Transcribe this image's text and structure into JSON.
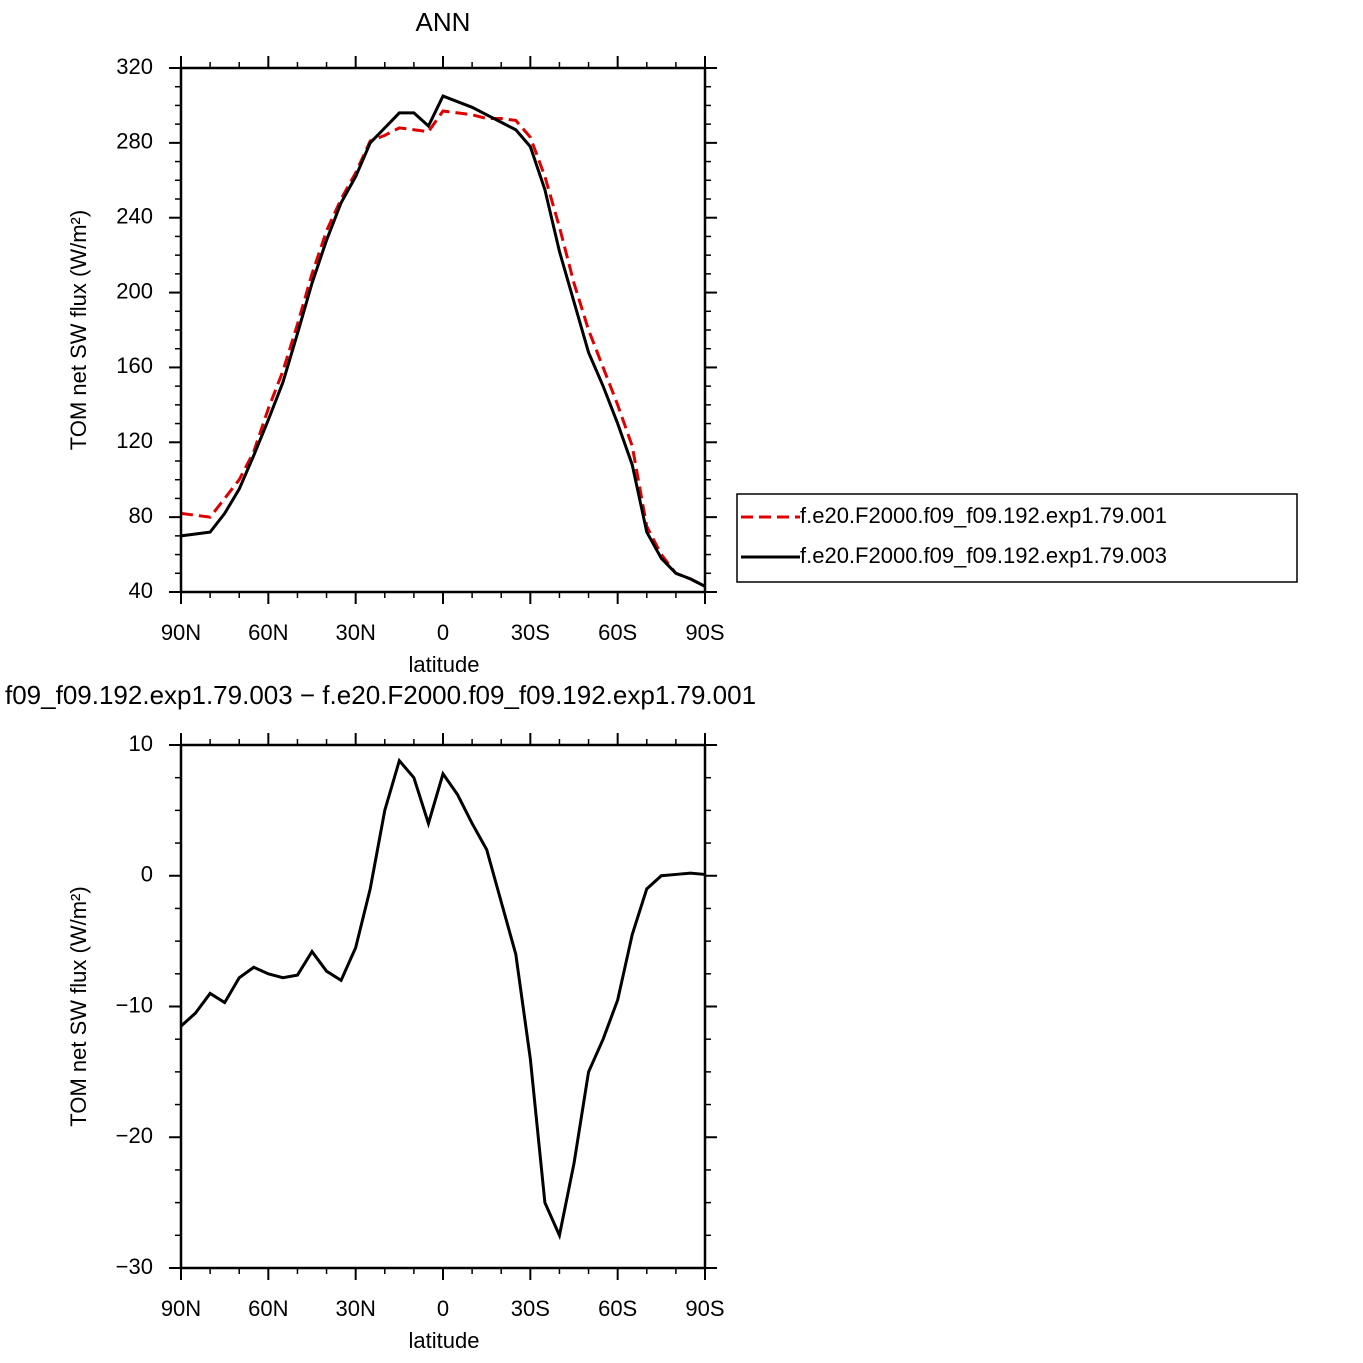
{
  "chart_data": [
    {
      "type": "line",
      "title": "ANN",
      "x_label": "latitude",
      "y_label": "TOM net SW flux (W/m²)",
      "x": [
        90,
        85,
        80,
        75,
        70,
        65,
        60,
        55,
        50,
        45,
        40,
        35,
        30,
        25,
        20,
        15,
        10,
        5,
        0,
        -5,
        -10,
        -15,
        -20,
        -25,
        -30,
        -35,
        -40,
        -45,
        -50,
        -55,
        -60,
        -65,
        -70,
        -75,
        -80,
        -85,
        -90
      ],
      "series": [
        {
          "name": "f.e20.F2000.f09_f09.192.exp1.79.001",
          "color": "#e00000",
          "line_style": "dashed",
          "values": [
            82,
            81,
            80,
            90,
            100,
            115,
            138,
            158,
            183,
            210,
            233,
            250,
            264,
            281,
            284,
            288,
            287,
            286,
            297,
            296,
            295,
            293,
            293,
            292,
            283,
            262,
            235,
            205,
            180,
            160,
            140,
            118,
            75,
            60,
            50,
            47,
            43
          ]
        },
        {
          "name": "f.e20.F2000.f09_f09.192.exp1.79.003",
          "color": "#000000",
          "line_style": "solid",
          "values": [
            70,
            71,
            72,
            82,
            95,
            113,
            132,
            152,
            178,
            205,
            228,
            248,
            262,
            280,
            288,
            296,
            296,
            289,
            305,
            302,
            299,
            295,
            291,
            287,
            278,
            255,
            222,
            195,
            168,
            150,
            130,
            108,
            72,
            58,
            50,
            47,
            43
          ]
        }
      ],
      "xlim": [
        90,
        -90
      ],
      "xticks": [
        {
          "value": 90,
          "label": "90N"
        },
        {
          "value": 60,
          "label": "60N"
        },
        {
          "value": 30,
          "label": "30N"
        },
        0,
        {
          "value": -30,
          "label": "30S"
        },
        {
          "value": -60,
          "label": "60S"
        },
        {
          "value": -90,
          "label": "90S"
        }
      ],
      "ylim": [
        40,
        320
      ],
      "yticks": [
        40,
        80,
        120,
        160,
        200,
        240,
        280,
        320
      ],
      "legend": "right"
    },
    {
      "type": "line",
      "title": "f09_f09.192.exp1.79.003 − f.e20.F2000.f09_f09.192.exp1.79.001",
      "x_label": "latitude",
      "y_label": "TOM net SW flux (W/m²)",
      "x": [
        90,
        85,
        80,
        75,
        70,
        65,
        60,
        55,
        50,
        45,
        40,
        35,
        30,
        25,
        20,
        15,
        10,
        5,
        0,
        -5,
        -10,
        -15,
        -20,
        -25,
        -30,
        -35,
        -40,
        -45,
        -50,
        -55,
        -60,
        -65,
        -70,
        -75,
        -80,
        -85,
        -90
      ],
      "series": [
        {
          "color": "#000000",
          "line_style": "solid",
          "values": [
            -11.5,
            -10.5,
            -9,
            -9.7,
            -7.8,
            -7,
            -7.5,
            -7.8,
            -7.6,
            -5.8,
            -7.3,
            -8,
            -5.5,
            -1,
            5,
            8.8,
            7.5,
            4,
            7.8,
            6.2,
            4,
            2,
            -2,
            -6,
            -14,
            -25,
            -27.5,
            -22,
            -15,
            -12.5,
            -9.5,
            -4.5,
            -1,
            0,
            0.1,
            0.2,
            0.1
          ]
        }
      ],
      "xlim": [
        90,
        -90
      ],
      "xticks": [
        {
          "value": 90,
          "label": "90N"
        },
        {
          "value": 60,
          "label": "60N"
        },
        {
          "value": 30,
          "label": "30N"
        },
        0,
        {
          "value": -30,
          "label": "30S"
        },
        {
          "value": -60,
          "label": "60S"
        },
        {
          "value": -90,
          "label": "90S"
        }
      ],
      "ylim": [
        -30,
        10
      ],
      "yticks": [
        {
          "value": -30,
          "label": "−30"
        },
        {
          "value": -20,
          "label": "−20"
        },
        {
          "value": -10,
          "label": "−10"
        },
        0,
        10
      ]
    }
  ]
}
